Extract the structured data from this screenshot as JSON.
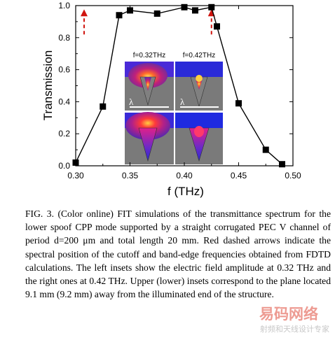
{
  "chart_data": {
    "type": "line",
    "xlabel": "f (THz)",
    "ylabel": "Transmission",
    "xlim": [
      0.3,
      0.5
    ],
    "ylim": [
      0.0,
      1.0
    ],
    "xticks": [
      "0.30",
      "0.35",
      "0.40",
      "0.45",
      "0.50"
    ],
    "yticks": [
      "0.0",
      "0.2",
      "0.4",
      "0.6",
      "0.8",
      "1.0"
    ],
    "grid": false,
    "series": [
      {
        "x": [
          0.3,
          0.325,
          0.34,
          0.35,
          0.375,
          0.4,
          0.41,
          0.425,
          0.43,
          0.45,
          0.475,
          0.49
        ],
        "values": [
          0.02,
          0.37,
          0.94,
          0.97,
          0.95,
          0.99,
          0.97,
          0.99,
          0.87,
          0.39,
          0.1,
          0.01
        ]
      }
    ],
    "markers": "square",
    "line_color": "#000000",
    "arrow_color": "#d0150f",
    "cutoff_arrows_x": [
      0.3,
      0.425
    ],
    "insets": {
      "left_label": "f=0.32THz",
      "right_label": "f=0.42THz",
      "lambda": "λ"
    }
  },
  "caption": "FIG. 3. (Color online) FIT simulations of the transmittance spectrum for the lower spoof CPP mode supported by a straight corrugated PEC V channel of period d=200  μm and total length 20 mm. Red dashed arrows indicate the spectral position of the cutoff and band-edge frequencies obtained from FDTD calculations. The left insets show the electric field amplitude at 0.32 THz and the right ones at 0.42 THz. Upper (lower) insets correspond to the plane located 9.1 mm (9.2 mm) away from the illuminated end of the structure.",
  "watermark": {
    "line1": "易码网络",
    "line2": "射频和天线设计专家"
  }
}
